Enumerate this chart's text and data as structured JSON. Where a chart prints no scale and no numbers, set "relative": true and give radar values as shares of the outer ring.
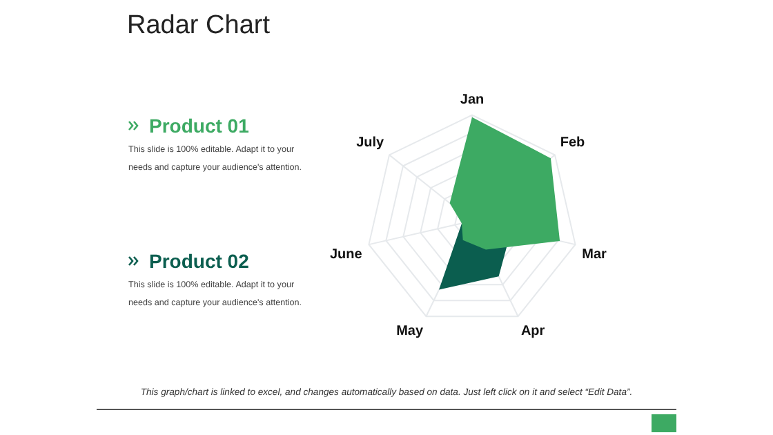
{
  "chart_data": {
    "type": "radar",
    "title": "Radar Chart",
    "categories": [
      "Jan",
      "Feb",
      "Mar",
      "Apr",
      "May",
      "June",
      "July"
    ],
    "relative": true,
    "legend": "left",
    "grid": true,
    "series": [
      {
        "name": "Product 01",
        "color": "#3daa63",
        "values": [
          0.98,
          0.95,
          0.85,
          0.3,
          0.2,
          0.1,
          0.27
        ]
      },
      {
        "name": "Product 02",
        "color": "#0b5e4f",
        "values": [
          0.4,
          0.41,
          0.38,
          0.58,
          0.72,
          0.1,
          0.15
        ]
      }
    ],
    "annotations": [
      "This slide is 100% editable. Adapt it to your needs and capture your audience's attention.",
      "This slide is 100% editable. Adapt it to your needs and capture your audience's attention.",
      "This graph/chart is linked to excel, and changes automatically based on data. Just left click on it and select “Edit Data”."
    ]
  }
}
